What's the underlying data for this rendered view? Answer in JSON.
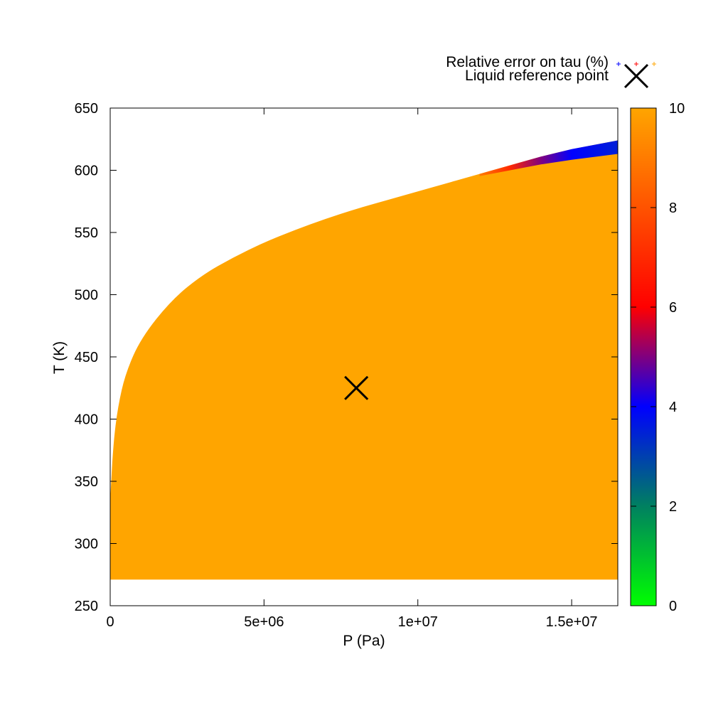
{
  "chart_data": {
    "type": "heatmap",
    "xlabel": "P (Pa)",
    "ylabel": "T (K)",
    "xlim": [
      0,
      16500000
    ],
    "ylim": [
      250,
      650
    ],
    "x_ticks": [
      {
        "value": 0,
        "label": "0"
      },
      {
        "value": 5000000,
        "label": "5e+06"
      },
      {
        "value": 10000000,
        "label": "1e+07"
      },
      {
        "value": 15000000,
        "label": "1.5e+07"
      }
    ],
    "y_ticks": [
      {
        "value": 250,
        "label": "250"
      },
      {
        "value": 300,
        "label": "300"
      },
      {
        "value": 350,
        "label": "350"
      },
      {
        "value": 400,
        "label": "400"
      },
      {
        "value": 450,
        "label": "450"
      },
      {
        "value": 500,
        "label": "500"
      },
      {
        "value": 550,
        "label": "550"
      },
      {
        "value": 600,
        "label": "600"
      },
      {
        "value": 650,
        "label": "650"
      }
    ],
    "colorbar": {
      "range": [
        0,
        10
      ],
      "ticks": [
        {
          "value": 0,
          "label": "0"
        },
        {
          "value": 2,
          "label": "2"
        },
        {
          "value": 4,
          "label": "4"
        },
        {
          "value": 6,
          "label": "6"
        },
        {
          "value": 8,
          "label": "8"
        },
        {
          "value": 10,
          "label": "10"
        }
      ],
      "stops": [
        {
          "value": 0,
          "color": "#00ff00"
        },
        {
          "value": 2,
          "color": "#008060"
        },
        {
          "value": 4,
          "color": "#0000ff"
        },
        {
          "value": 6,
          "color": "#ff0000"
        },
        {
          "value": 10,
          "color": "#ffa500"
        }
      ]
    },
    "region": {
      "fill_color": "#ffa500",
      "t_min": 271,
      "upper_boundary": [
        {
          "p": 0,
          "t": 335
        },
        {
          "p": 100000,
          "t": 380
        },
        {
          "p": 250000,
          "t": 410
        },
        {
          "p": 500000,
          "t": 437
        },
        {
          "p": 1000000,
          "t": 465
        },
        {
          "p": 2000000,
          "t": 496
        },
        {
          "p": 3000000,
          "t": 516
        },
        {
          "p": 4000000,
          "t": 530
        },
        {
          "p": 5000000,
          "t": 542
        },
        {
          "p": 6000000,
          "t": 552
        },
        {
          "p": 7000000,
          "t": 561
        },
        {
          "p": 8000000,
          "t": 569
        },
        {
          "p": 9000000,
          "t": 576
        },
        {
          "p": 10000000,
          "t": 583
        },
        {
          "p": 11000000,
          "t": 590
        },
        {
          "p": 12000000,
          "t": 597
        },
        {
          "p": 13000000,
          "t": 604
        },
        {
          "p": 14000000,
          "t": 611
        },
        {
          "p": 15000000,
          "t": 617
        },
        {
          "p": 16500000,
          "t": 624
        }
      ],
      "error_band": [
        {
          "p": 12000000,
          "t": 597,
          "error": 9
        },
        {
          "p": 13000000,
          "t": 604,
          "error": 7
        },
        {
          "p": 14000000,
          "t": 611,
          "error": 5
        },
        {
          "p": 15000000,
          "t": 617,
          "error": 4
        },
        {
          "p": 16500000,
          "t": 624,
          "error": 3.5
        }
      ]
    },
    "reference_point": {
      "p": 8000000,
      "t": 425
    },
    "legend": {
      "position": "top-right",
      "entries": [
        {
          "label": "Relative error on tau (%)",
          "marker": "plus",
          "colors": [
            "#0000ff",
            "#ff0000",
            "#ffa500"
          ]
        },
        {
          "label": "Liquid reference point",
          "marker": "cross",
          "colors": [
            "#000000"
          ]
        }
      ]
    },
    "grid": false
  }
}
